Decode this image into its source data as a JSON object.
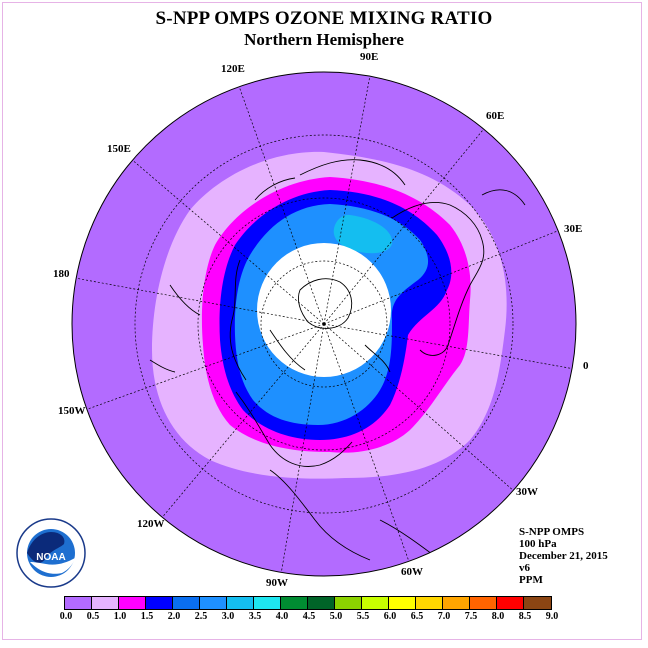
{
  "title": "S-NPP OMPS OZONE MIXING RATIO",
  "subtitle": "Northern Hemisphere",
  "longitude_labels": [
    "90E",
    "60E",
    "30E",
    "0",
    "30W",
    "60W",
    "90W",
    "120W",
    "150W",
    "180",
    "150E",
    "120E"
  ],
  "info": {
    "instrument": "S-NPP OMPS",
    "level": "100 hPa",
    "date": "December 21, 2015",
    "version": "v6",
    "units": "PPM"
  },
  "colorbar": {
    "colors": [
      "#b36bff",
      "#e6b3ff",
      "#ff00ff",
      "#0000ff",
      "#0a6ef0",
      "#1e90ff",
      "#14bef0",
      "#1ee6f0",
      "#008c32",
      "#006428",
      "#8cd200",
      "#c8ff00",
      "#ffff00",
      "#ffd700",
      "#ffa500",
      "#ff6400",
      "#ff0000",
      "#8b4513"
    ],
    "ticks": [
      "0.0",
      "0.5",
      "1.0",
      "1.5",
      "2.0",
      "2.5",
      "3.0",
      "3.5",
      "4.0",
      "4.5",
      "5.0",
      "5.5",
      "6.0",
      "6.5",
      "7.0",
      "7.5",
      "8.0",
      "8.5",
      "9.0"
    ]
  },
  "map_colors": {
    "outer": "#b36bff",
    "ring_light": "#e6b3ff",
    "ring_magenta": "#ff00ff",
    "ring_blue": "#0000ff",
    "core_mid": "#1e90ff",
    "core_light": "#14bef0",
    "pole_nodata": "#ffffff"
  },
  "logo_text": "NOAA"
}
